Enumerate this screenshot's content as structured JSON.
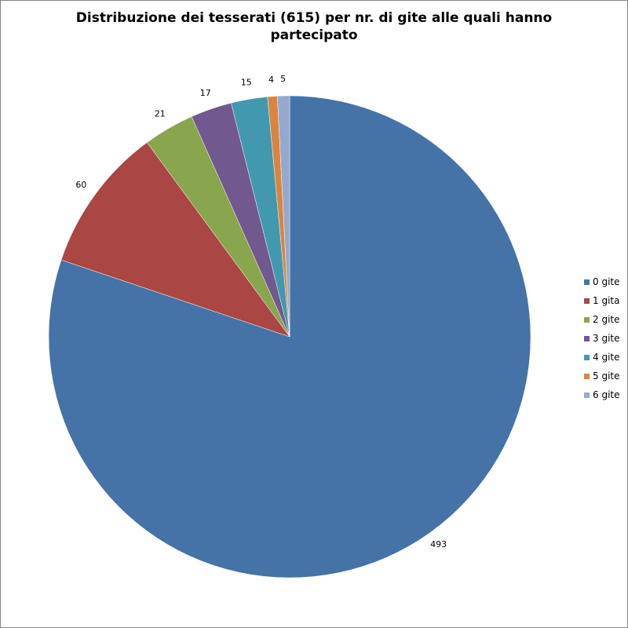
{
  "chart_data": {
    "type": "pie",
    "title_lines": [
      "Distribuzione dei tesserati (615) per nr. di gite alle quali hanno",
      "partecipato"
    ],
    "categories": [
      "0 gite",
      "1 gita",
      "2 gite",
      "3 gite",
      "4 gite",
      "5 gite",
      "6 gite"
    ],
    "values": [
      493,
      60,
      21,
      17,
      15,
      4,
      5
    ],
    "data_labels": [
      "493",
      "60",
      "21",
      "17",
      "15",
      "4",
      "5"
    ],
    "colors": [
      "#4572A7",
      "#AA4643",
      "#89A54E",
      "#71588F",
      "#4198AF",
      "#DB843D",
      "#93A9CF"
    ],
    "legend_position": "right",
    "start_angle": "12 o'clock, clockwise"
  }
}
